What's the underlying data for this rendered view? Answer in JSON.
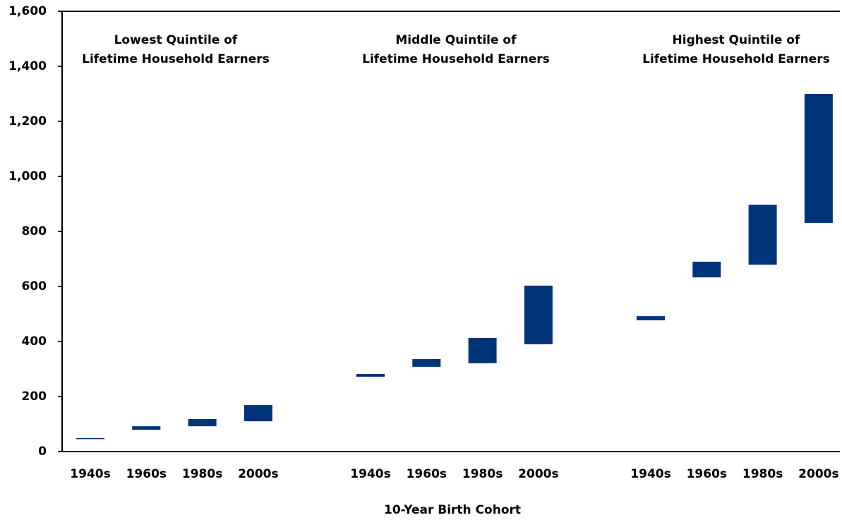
{
  "chart_data": {
    "type": "floating_bar",
    "x_label": "10-Year Birth Cohort",
    "color": "#003478",
    "ylim": [
      0,
      1600
    ],
    "yticks": [
      0,
      200,
      400,
      600,
      800,
      {
        "value": 1000,
        "label": "1,000"
      },
      {
        "value": 1200,
        "label": "1,200"
      },
      {
        "value": 1400,
        "label": "1,400"
      },
      {
        "value": 1600,
        "label": "1,600"
      }
    ],
    "groups": [
      {
        "title": [
          "Lowest Quintile of",
          "Lifetime Household Earners"
        ],
        "categories": [
          "1940s",
          "1960s",
          "1980s",
          "2000s"
        ],
        "low": [
          46,
          79,
          92,
          110
        ],
        "high": [
          49,
          92,
          118,
          169
        ]
      },
      {
        "title": [
          "Middle Quintile of",
          "Lifetime Household Earners"
        ],
        "categories": [
          "1940s",
          "1960s",
          "1980s",
          "2000s"
        ],
        "low": [
          272,
          308,
          321,
          390
        ],
        "high": [
          282,
          336,
          413,
          603
        ]
      },
      {
        "title": [
          "Highest Quintile of",
          "Lifetime Household Earners"
        ],
        "categories": [
          "1940s",
          "1960s",
          "1980s",
          "2000s"
        ],
        "low": [
          477,
          633,
          679,
          831
        ],
        "high": [
          492,
          690,
          897,
          1300
        ]
      }
    ]
  }
}
